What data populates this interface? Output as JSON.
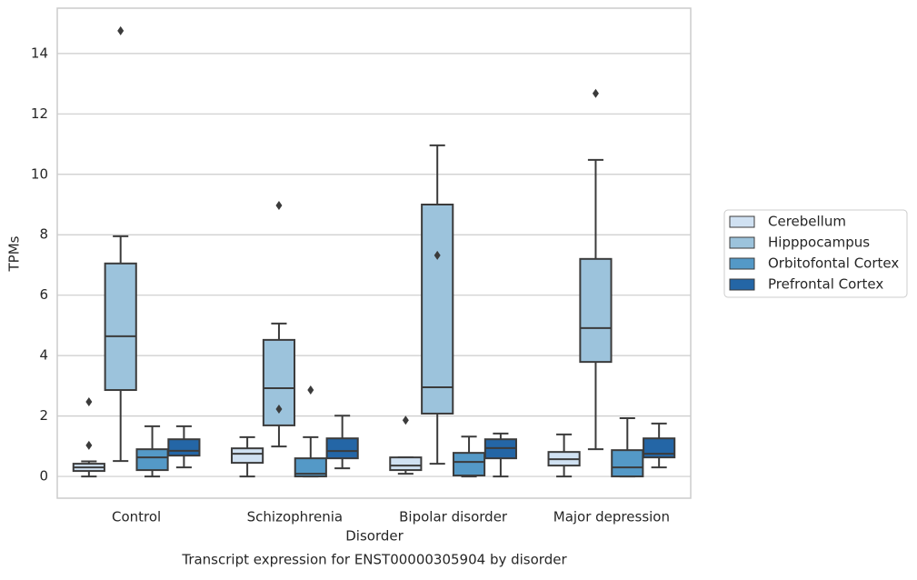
{
  "chart_data": {
    "type": "box",
    "caption": "Transcript expression for ENST00000305904 by disorder",
    "x_label": "Disorder",
    "y_label": "TPMs",
    "categories": [
      "Control",
      "Schizophrenia",
      "Bipolar disorder",
      "Major depression"
    ],
    "ylim": [
      -0.72,
      15.5
    ],
    "yticks": [
      0,
      2,
      4,
      6,
      8,
      10,
      12,
      14
    ],
    "grid": true,
    "legend": "right",
    "series": [
      {
        "name": "Cerebellum",
        "color": "#d0e1f2",
        "boxes": [
          {
            "min": 0,
            "q1": 0.18,
            "median": 0.3,
            "q3": 0.42,
            "max": 0.5,
            "outliers": [
              2.47,
              1.03
            ]
          },
          {
            "min": 0,
            "q1": 0.45,
            "median": 0.75,
            "q3": 0.93,
            "max": 1.3,
            "outliers": []
          },
          {
            "min": 0.09,
            "q1": 0.21,
            "median": 0.36,
            "q3": 0.63,
            "max": 0.63,
            "outliers": [
              1.86
            ]
          },
          {
            "min": 0,
            "q1": 0.36,
            "median": 0.57,
            "q3": 0.81,
            "max": 1.39,
            "outliers": []
          }
        ]
      },
      {
        "name": "Hipppocampus",
        "color": "#9cc3dc",
        "boxes": [
          {
            "min": 0.51,
            "q1": 2.86,
            "median": 4.64,
            "q3": 7.05,
            "max": 7.95,
            "outliers": [
              14.75
            ]
          },
          {
            "min": 0.99,
            "q1": 1.69,
            "median": 2.92,
            "q3": 4.52,
            "max": 5.06,
            "outliers": [
              8.97,
              2.23
            ]
          },
          {
            "min": 0.42,
            "q1": 2.08,
            "median": 2.95,
            "q3": 9.0,
            "max": 10.96,
            "outliers": [
              7.32
            ]
          },
          {
            "min": 0.9,
            "q1": 3.79,
            "median": 4.91,
            "q3": 7.2,
            "max": 10.48,
            "outliers": [
              12.68
            ]
          }
        ]
      },
      {
        "name": "Orbitofontal Cortex",
        "color": "#5499c7",
        "boxes": [
          {
            "min": 0,
            "q1": 0.21,
            "median": 0.63,
            "q3": 0.9,
            "max": 1.66,
            "outliers": []
          },
          {
            "min": 0,
            "q1": 0,
            "median": 0.09,
            "q3": 0.6,
            "max": 1.3,
            "outliers": [
              2.86
            ]
          },
          {
            "min": 0,
            "q1": 0.03,
            "median": 0.48,
            "q3": 0.78,
            "max": 1.32,
            "outliers": []
          },
          {
            "min": 0,
            "q1": 0,
            "median": 0.3,
            "q3": 0.87,
            "max": 1.93,
            "outliers": []
          }
        ]
      },
      {
        "name": "Prefrontal Cortex",
        "color": "#2466a6",
        "boxes": [
          {
            "min": 0.3,
            "q1": 0.69,
            "median": 0.85,
            "q3": 1.23,
            "max": 1.66,
            "outliers": []
          },
          {
            "min": 0.27,
            "q1": 0.6,
            "median": 0.84,
            "q3": 1.26,
            "max": 2.01,
            "outliers": []
          },
          {
            "min": 0,
            "q1": 0.6,
            "median": 0.94,
            "q3": 1.23,
            "max": 1.42,
            "outliers": []
          },
          {
            "min": 0.3,
            "q1": 0.63,
            "median": 0.75,
            "q3": 1.26,
            "max": 1.75,
            "outliers": []
          }
        ]
      }
    ]
  }
}
